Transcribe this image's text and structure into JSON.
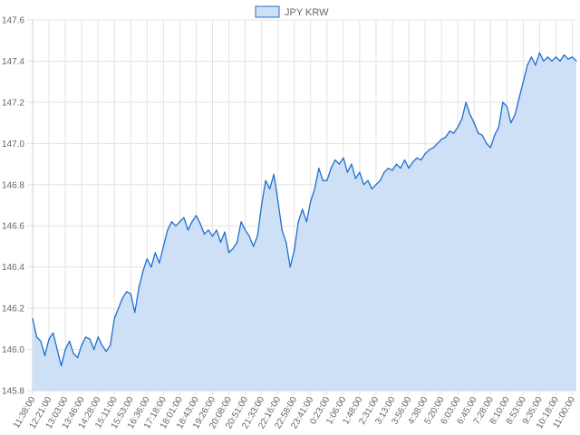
{
  "chart_data": {
    "type": "area",
    "legend": {
      "position": "top-center"
    },
    "series": [
      {
        "name": "JPY KRW",
        "fill_color": "#cde0f5",
        "line_color": "#1f6fcf",
        "points": [
          [
            "11:38:00",
            146.15
          ],
          [
            "11:50:00",
            146.06
          ],
          [
            "12:03:00",
            146.04
          ],
          [
            "12:10:00",
            145.97
          ],
          [
            "12:21:00",
            146.05
          ],
          [
            "12:31:00",
            146.08
          ],
          [
            "12:42:00",
            146.0
          ],
          [
            "12:52:00",
            145.92
          ],
          [
            "13:03:00",
            146.0
          ],
          [
            "13:13:00",
            146.04
          ],
          [
            "13:24:00",
            145.98
          ],
          [
            "13:35:00",
            145.96
          ],
          [
            "13:46:00",
            146.02
          ],
          [
            "13:56:00",
            146.06
          ],
          [
            "14:07:00",
            146.05
          ],
          [
            "14:17:00",
            146.0
          ],
          [
            "14:28:00",
            146.06
          ],
          [
            "14:38:00",
            146.02
          ],
          [
            "14:49:00",
            145.99
          ],
          [
            "15:00:00",
            146.02
          ],
          [
            "15:11:00",
            146.15
          ],
          [
            "15:21:00",
            146.2
          ],
          [
            "15:32:00",
            146.25
          ],
          [
            "15:42:00",
            146.28
          ],
          [
            "15:53:00",
            146.27
          ],
          [
            "16:04:00",
            146.18
          ],
          [
            "16:15:00",
            146.3
          ],
          [
            "16:25:00",
            146.38
          ],
          [
            "16:36:00",
            146.44
          ],
          [
            "16:47:00",
            146.4
          ],
          [
            "16:57:00",
            146.47
          ],
          [
            "17:08:00",
            146.42
          ],
          [
            "17:18:00",
            146.5
          ],
          [
            "17:29:00",
            146.58
          ],
          [
            "17:40:00",
            146.62
          ],
          [
            "17:50:00",
            146.6
          ],
          [
            "18:01:00",
            146.62
          ],
          [
            "18:11:00",
            146.64
          ],
          [
            "18:22:00",
            146.58
          ],
          [
            "18:33:00",
            146.62
          ],
          [
            "18:43:00",
            146.65
          ],
          [
            "18:54:00",
            146.61
          ],
          [
            "19:04:00",
            146.56
          ],
          [
            "19:15:00",
            146.58
          ],
          [
            "19:26:00",
            146.55
          ],
          [
            "19:36:00",
            146.58
          ],
          [
            "19:47:00",
            146.52
          ],
          [
            "19:58:00",
            146.57
          ],
          [
            "20:08:00",
            146.47
          ],
          [
            "20:19:00",
            146.49
          ],
          [
            "20:30:00",
            146.52
          ],
          [
            "20:40:00",
            146.62
          ],
          [
            "20:51:00",
            146.58
          ],
          [
            "21:01:00",
            146.55
          ],
          [
            "21:12:00",
            146.5
          ],
          [
            "21:22:00",
            146.55
          ],
          [
            "21:33:00",
            146.7
          ],
          [
            "21:43:00",
            146.82
          ],
          [
            "21:54:00",
            146.78
          ],
          [
            "22:05:00",
            146.85
          ],
          [
            "22:16:00",
            146.72
          ],
          [
            "22:26:00",
            146.58
          ],
          [
            "22:37:00",
            146.52
          ],
          [
            "22:48:00",
            146.4
          ],
          [
            "22:58:00",
            146.48
          ],
          [
            "23:09:00",
            146.62
          ],
          [
            "23:20:00",
            146.68
          ],
          [
            "23:30:00",
            146.62
          ],
          [
            "23:41:00",
            146.72
          ],
          [
            "23:52:00",
            146.78
          ],
          [
            "0:02:00",
            146.88
          ],
          [
            "0:12:00",
            146.82
          ],
          [
            "0:23:00",
            146.82
          ],
          [
            "0:34:00",
            146.88
          ],
          [
            "0:44:00",
            146.92
          ],
          [
            "0:55:00",
            146.9
          ],
          [
            "1:06:00",
            146.93
          ],
          [
            "1:16:00",
            146.86
          ],
          [
            "1:27:00",
            146.9
          ],
          [
            "1:38:00",
            146.83
          ],
          [
            "1:48:00",
            146.86
          ],
          [
            "1:59:00",
            146.8
          ],
          [
            "2:09:00",
            146.82
          ],
          [
            "2:20:00",
            146.78
          ],
          [
            "2:31:00",
            146.8
          ],
          [
            "2:41:00",
            146.82
          ],
          [
            "2:52:00",
            146.86
          ],
          [
            "3:02:00",
            146.88
          ],
          [
            "3:13:00",
            146.87
          ],
          [
            "3:24:00",
            146.9
          ],
          [
            "3:34:00",
            146.88
          ],
          [
            "3:45:00",
            146.92
          ],
          [
            "3:56:00",
            146.88
          ],
          [
            "4:06:00",
            146.91
          ],
          [
            "4:17:00",
            146.93
          ],
          [
            "4:27:00",
            146.92
          ],
          [
            "4:38:00",
            146.95
          ],
          [
            "4:49:00",
            146.97
          ],
          [
            "4:59:00",
            146.98
          ],
          [
            "5:10:00",
            147.0
          ],
          [
            "5:20:00",
            147.02
          ],
          [
            "5:31:00",
            147.03
          ],
          [
            "5:41:00",
            147.06
          ],
          [
            "5:52:00",
            147.05
          ],
          [
            "6:03:00",
            147.08
          ],
          [
            "6:13:00",
            147.12
          ],
          [
            "6:24:00",
            147.2
          ],
          [
            "6:34:00",
            147.14
          ],
          [
            "6:45:00",
            147.1
          ],
          [
            "6:56:00",
            147.05
          ],
          [
            "7:06:00",
            147.04
          ],
          [
            "7:17:00",
            147.0
          ],
          [
            "7:28:00",
            146.98
          ],
          [
            "7:38:00",
            147.04
          ],
          [
            "7:49:00",
            147.08
          ],
          [
            "7:59:00",
            147.2
          ],
          [
            "8:10:00",
            147.18
          ],
          [
            "8:20:00",
            147.1
          ],
          [
            "8:31:00",
            147.14
          ],
          [
            "8:42:00",
            147.22
          ],
          [
            "8:53:00",
            147.3
          ],
          [
            "9:03:00",
            147.38
          ],
          [
            "9:14:00",
            147.42
          ],
          [
            "9:24:00",
            147.38
          ],
          [
            "9:35:00",
            147.44
          ],
          [
            "9:46:00",
            147.4
          ],
          [
            "9:56:00",
            147.42
          ],
          [
            "10:07:00",
            147.4
          ],
          [
            "10:18:00",
            147.42
          ],
          [
            "10:28:00",
            147.4
          ],
          [
            "10:39:00",
            147.43
          ],
          [
            "10:49:00",
            147.41
          ],
          [
            "11:00:00",
            147.42
          ],
          [
            "11:10:00",
            147.4
          ]
        ]
      }
    ],
    "x_tick_labels": [
      "11:38:00",
      "12:21:00",
      "13:03:00",
      "13:46:00",
      "14:28:00",
      "15:11:00",
      "15:53:00",
      "16:36:00",
      "17:18:00",
      "18:01:00",
      "18:43:00",
      "19:26:00",
      "20:08:00",
      "20:51:00",
      "21:33:00",
      "22:16:00",
      "22:58:00",
      "23:41:00",
      "0:23:00",
      "1:06:00",
      "1:48:00",
      "2:31:00",
      "3:13:00",
      "3:56:00",
      "4:38:00",
      "5:20:00",
      "6:03:00",
      "6:45:00",
      "7:28:00",
      "8:10:00",
      "8:53:00",
      "9:35:00",
      "10:18:00",
      "11:00:00"
    ],
    "y_ticks": [
      "147.6",
      "147.4",
      "147.2",
      "147.0",
      "146.8",
      "146.6",
      "146.4",
      "146.2",
      "146.0",
      "145.8"
    ],
    "ylim": [
      145.8,
      147.6
    ],
    "grid": true
  }
}
